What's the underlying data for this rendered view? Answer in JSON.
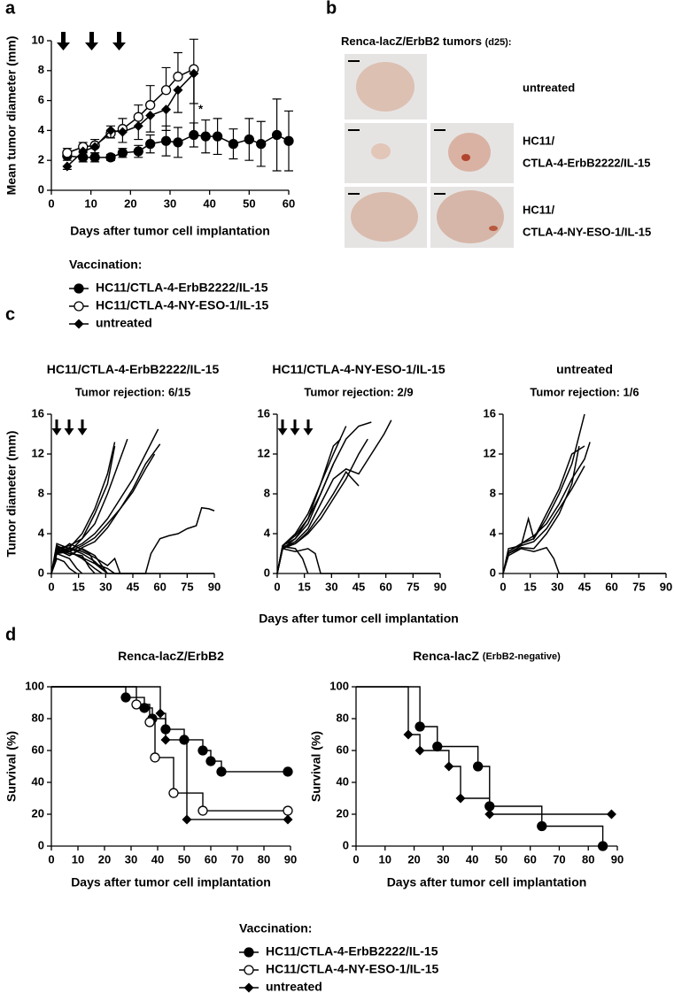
{
  "figure": {
    "panel_labels": [
      "a",
      "b",
      "c",
      "d"
    ],
    "panel_b": {
      "title": "Renca-lacZ/ErbB2 tumors",
      "title_note": "(d25):",
      "rows": [
        [
          "untreated"
        ],
        [
          "HC11/",
          "CTLA-4-ErbB2222/IL-15"
        ],
        [
          "HC11/",
          "CTLA-4-NY-ESO-1/IL-15"
        ]
      ]
    }
  },
  "chart_data": [
    {
      "type": "line",
      "x_label": "Days after tumor cell implantation",
      "y_label": "Mean tumor diameter  (mm)",
      "xlim": [
        0,
        60
      ],
      "xticks": [
        0,
        10,
        20,
        30,
        40,
        50,
        60
      ],
      "ylim": [
        0,
        10
      ],
      "yticks": [
        0,
        2,
        4,
        6,
        8,
        10
      ],
      "annotation": "*",
      "legend_title": "Vaccination:",
      "series": [
        {
          "name": "HC11/CTLA-4-ErbB2222/IL-15",
          "color": "#000000",
          "marker": "filled-circle",
          "error_direction": "both",
          "x": [
            4,
            8,
            11,
            15,
            18,
            22,
            25,
            29,
            32,
            36,
            39,
            42,
            46,
            50,
            53,
            57,
            60
          ],
          "values": [
            2.3,
            2.2,
            2.2,
            2.2,
            2.5,
            2.6,
            3.1,
            3.3,
            3.2,
            3.7,
            3.6,
            3.6,
            3.1,
            3.4,
            3.1,
            3.7,
            3.3
          ],
          "error": [
            0.3,
            0.3,
            0.3,
            0.2,
            0.3,
            0.4,
            0.6,
            1.0,
            1.0,
            0.8,
            1.1,
            1.2,
            1.0,
            1.4,
            1.5,
            2.4,
            2.0
          ]
        },
        {
          "name": "HC11/CTLA-4-NY-ESO-1/IL-15",
          "color": "#000000",
          "marker": "open-circle",
          "error_direction": "up",
          "x": [
            4,
            8,
            11,
            15,
            18,
            22,
            25,
            29,
            32,
            36
          ],
          "values": [
            2.5,
            2.9,
            3.0,
            3.8,
            4.1,
            4.9,
            5.7,
            6.7,
            7.6,
            8.1
          ],
          "error": [
            0.3,
            0.3,
            0.4,
            0.5,
            0.7,
            0.8,
            1.3,
            1.5,
            1.6,
            2.0
          ]
        },
        {
          "name": "untreated",
          "color": "#000000",
          "marker": "diamond",
          "error_direction": "down",
          "x": [
            4,
            8,
            11,
            15,
            18,
            22,
            25,
            29,
            32,
            36
          ],
          "values": [
            1.6,
            2.6,
            2.9,
            4.0,
            3.9,
            4.3,
            5.0,
            5.4,
            6.7,
            7.8
          ],
          "error": [
            0.2,
            0.3,
            0.4,
            0.5,
            0.7,
            0.9,
            1.1,
            1.4,
            1.5,
            2.0
          ]
        }
      ]
    },
    {
      "type": "line",
      "title": "HC11/CTLA-4-ErbB2222/IL-15",
      "subtitle": "Tumor rejection: 6/15",
      "y_label": "Tumor diameter  (mm)",
      "xlim": [
        0,
        90
      ],
      "xticks": [
        0,
        15,
        30,
        45,
        60,
        75,
        90
      ],
      "ylim": [
        0,
        16
      ],
      "yticks": [
        0,
        4,
        8,
        12,
        16
      ],
      "series": [
        {
          "color": "#000000",
          "x": [
            0,
            3,
            10,
            17,
            24,
            31,
            38,
            42
          ],
          "values": [
            0,
            2.5,
            2.8,
            3.5,
            5,
            8,
            11.5,
            13.5
          ]
        },
        {
          "color": "#000000",
          "x": [
            0,
            3,
            10,
            17,
            24,
            31,
            35
          ],
          "values": [
            0,
            2,
            2.6,
            4,
            6.5,
            10,
            13.2
          ]
        },
        {
          "color": "#000000",
          "x": [
            0,
            3,
            10,
            17,
            24,
            31,
            35
          ],
          "values": [
            0,
            2.7,
            2.2,
            3.5,
            6,
            9,
            12.8
          ]
        },
        {
          "color": "#000000",
          "x": [
            0,
            3,
            10,
            17,
            24,
            31,
            38,
            45,
            52,
            59
          ],
          "values": [
            0,
            2.2,
            2.4,
            3,
            4,
            5.5,
            7.5,
            9.5,
            12,
            14.5
          ]
        },
        {
          "color": "#000000",
          "x": [
            0,
            3,
            10,
            17,
            24,
            31,
            38,
            45,
            52,
            60
          ],
          "values": [
            0,
            2,
            2.2,
            2.8,
            3.6,
            5,
            6.5,
            8.5,
            11,
            13
          ]
        },
        {
          "color": "#000000",
          "x": [
            0,
            3,
            10,
            17,
            24,
            31,
            38,
            45,
            52,
            57
          ],
          "values": [
            0,
            2.5,
            1.8,
            2.6,
            3.2,
            4.6,
            6.5,
            8.2,
            10.5,
            12
          ]
        },
        {
          "color": "#000000",
          "x": [
            0,
            3,
            10,
            17,
            24,
            28
          ],
          "values": [
            0,
            2.8,
            2.2,
            1.5,
            0.5,
            0
          ]
        },
        {
          "color": "#000000",
          "x": [
            0,
            3,
            10,
            17,
            21,
            24
          ],
          "values": [
            0,
            2.5,
            2,
            1.8,
            0.6,
            0
          ]
        },
        {
          "color": "#000000",
          "x": [
            0,
            3,
            10,
            14,
            17
          ],
          "values": [
            0,
            2,
            1.5,
            0.5,
            0
          ]
        },
        {
          "color": "#000000",
          "x": [
            0,
            3,
            10,
            17,
            24,
            31
          ],
          "values": [
            0,
            3,
            2.5,
            2.0,
            1.2,
            0
          ]
        },
        {
          "color": "#000000",
          "x": [
            0,
            3,
            7,
            10,
            14
          ],
          "values": [
            0,
            1.5,
            1.2,
            0.5,
            0
          ]
        },
        {
          "color": "#000000",
          "x": [
            0,
            3,
            10,
            17,
            24,
            31,
            35,
            90
          ],
          "values": [
            0,
            2.5,
            2.2,
            1.6,
            1,
            0.5,
            0,
            0
          ]
        },
        {
          "color": "#000000",
          "x": [
            0,
            3,
            10,
            17,
            21,
            24,
            31,
            52,
            55,
            60,
            65,
            70,
            75,
            80,
            83,
            87,
            90
          ],
          "values": [
            0,
            2,
            3,
            2.4,
            2,
            1,
            0,
            0,
            2,
            3.5,
            3.8,
            4,
            4.5,
            4.8,
            6.6,
            6.5,
            6.3
          ]
        },
        {
          "color": "#000000",
          "x": [
            0,
            3,
            10,
            17,
            24,
            31,
            35,
            38,
            45
          ],
          "values": [
            0,
            2.2,
            2.6,
            2.2,
            1.6,
            0.8,
            1.5,
            0,
            0
          ]
        },
        {
          "color": "#000000",
          "x": [
            0,
            3,
            10,
            17,
            24,
            31
          ],
          "values": [
            0,
            2.4,
            1.8,
            2.5,
            1.8,
            0
          ]
        }
      ]
    },
    {
      "type": "line",
      "title": "HC11/CTLA-4-NY-ESO-1/IL-15",
      "subtitle": "Tumor rejection: 2/9",
      "x_label": "Days after tumor cell implantation",
      "xlim": [
        0,
        90
      ],
      "xticks": [
        0,
        15,
        30,
        45,
        60,
        75,
        90
      ],
      "ylim": [
        0,
        16
      ],
      "yticks": [
        0,
        4,
        8,
        12,
        16
      ],
      "series": [
        {
          "color": "#000000",
          "x": [
            0,
            3,
            10,
            17,
            24,
            31,
            38,
            45,
            52
          ],
          "values": [
            0,
            2.5,
            3.5,
            5,
            8,
            11,
            13.5,
            14.8,
            15.2
          ]
        },
        {
          "color": "#000000",
          "x": [
            0,
            3,
            10,
            17,
            24,
            31,
            35
          ],
          "values": [
            0,
            2.8,
            3.5,
            5.5,
            9,
            12.8,
            13.5
          ]
        },
        {
          "color": "#000000",
          "x": [
            0,
            3,
            10,
            17,
            24,
            31,
            38,
            45,
            52,
            59,
            63
          ],
          "values": [
            0,
            2.6,
            3.2,
            4.5,
            7,
            9.5,
            10.5,
            10,
            12,
            14,
            15.4
          ]
        },
        {
          "color": "#000000",
          "x": [
            0,
            3,
            10,
            17,
            24,
            31,
            38,
            45
          ],
          "values": [
            0,
            2.5,
            3,
            4.2,
            6,
            8,
            10.2,
            8.8
          ]
        },
        {
          "color": "#000000",
          "x": [
            0,
            3,
            10,
            17,
            24,
            31,
            38,
            45,
            50
          ],
          "values": [
            0,
            2.7,
            3,
            4,
            5.5,
            7.5,
            9.5,
            12,
            13.5
          ]
        },
        {
          "color": "#000000",
          "x": [
            0,
            3,
            10,
            17,
            24,
            31,
            38
          ],
          "values": [
            0,
            2.8,
            4,
            6,
            9,
            12,
            14.8
          ]
        },
        {
          "color": "#000000",
          "x": [
            0,
            3,
            10,
            17,
            24,
            31
          ],
          "values": [
            0,
            2.8,
            3.8,
            5.5,
            8,
            11
          ]
        },
        {
          "color": "#000000",
          "x": [
            0,
            3,
            10,
            17,
            21,
            24,
            90
          ],
          "values": [
            0,
            2.5,
            2.2,
            2.5,
            2,
            0,
            0
          ]
        },
        {
          "color": "#000000",
          "x": [
            0,
            3,
            10,
            14,
            17
          ],
          "values": [
            0,
            2.7,
            2.5,
            1.5,
            0
          ]
        }
      ]
    },
    {
      "type": "line",
      "title": "untreated",
      "subtitle": "Tumor rejection: 1/6",
      "xlim": [
        0,
        90
      ],
      "xticks": [
        0,
        15,
        30,
        45,
        60,
        75,
        90
      ],
      "ylim": [
        0,
        16
      ],
      "yticks": [
        0,
        4,
        8,
        12,
        16
      ],
      "series": [
        {
          "color": "#000000",
          "x": [
            0,
            3,
            10,
            17,
            24,
            31,
            38,
            45
          ],
          "values": [
            0,
            2.2,
            3,
            3.5,
            5.5,
            8,
            11,
            16
          ]
        },
        {
          "color": "#000000",
          "x": [
            0,
            3,
            10,
            14,
            17,
            24,
            31,
            38,
            45
          ],
          "values": [
            0,
            2,
            2.8,
            5.5,
            3.5,
            6,
            8.5,
            12,
            12.8
          ]
        },
        {
          "color": "#000000",
          "x": [
            0,
            3,
            10,
            17,
            24,
            31,
            38,
            45,
            48
          ],
          "values": [
            0,
            2.2,
            3,
            3.8,
            5,
            7,
            9.5,
            11.5,
            13.2
          ]
        },
        {
          "color": "#000000",
          "x": [
            0,
            3,
            10,
            17,
            24,
            31,
            38,
            45
          ],
          "values": [
            0,
            2.5,
            2.8,
            3.2,
            4.5,
            6.5,
            8.5,
            10.8
          ]
        },
        {
          "color": "#000000",
          "x": [
            0,
            3,
            10,
            17,
            24,
            31,
            38,
            42
          ],
          "values": [
            0,
            2,
            2.6,
            2.5,
            4,
            6,
            9,
            12.8
          ]
        },
        {
          "color": "#000000",
          "x": [
            0,
            3,
            10,
            17,
            24,
            28,
            31,
            90
          ],
          "values": [
            0,
            1.8,
            2.5,
            2.2,
            2.6,
            1.5,
            0,
            0
          ]
        }
      ]
    },
    {
      "type": "step",
      "title": "Renca-lacZ/ErbB2",
      "x_label": "Days after tumor cell implantation",
      "y_label": "Survival  (%)",
      "xlim": [
        0,
        90
      ],
      "xticks": [
        0,
        10,
        20,
        30,
        40,
        50,
        60,
        70,
        80,
        90
      ],
      "ylim": [
        0,
        100
      ],
      "yticks": [
        0,
        20,
        40,
        60,
        80,
        100
      ],
      "legend_title": "Vaccination:",
      "series": [
        {
          "name": "HC11/CTLA-4-ErbB2222/IL-15",
          "color": "#000000",
          "marker": "filled-circle",
          "x": [
            0,
            28,
            35,
            38,
            43,
            50,
            57,
            60,
            64,
            89
          ],
          "values": [
            100,
            93.3,
            86.7,
            80,
            73.3,
            66.7,
            60,
            53.3,
            46.7,
            46.7
          ]
        },
        {
          "name": "HC11/CTLA-4-NY-ESO-1/IL-15",
          "color": "#000000",
          "marker": "open-circle",
          "x": [
            0,
            32,
            37,
            39,
            46,
            57,
            89
          ],
          "values": [
            100,
            88.9,
            77.8,
            55.6,
            33.3,
            22.2,
            22.2
          ]
        },
        {
          "name": "untreated",
          "color": "#000000",
          "marker": "diamond",
          "x": [
            0,
            41,
            43,
            51,
            89
          ],
          "values": [
            100,
            83.3,
            66.7,
            16.7,
            16.7
          ]
        }
      ]
    },
    {
      "type": "step",
      "title": "Renca-lacZ",
      "title_note": "(ErbB2-negative)",
      "x_label": "Days after tumor cell implantation",
      "y_label": "Survival  (%)",
      "xlim": [
        0,
        90
      ],
      "xticks": [
        0,
        10,
        20,
        30,
        40,
        50,
        60,
        70,
        80,
        90
      ],
      "ylim": [
        0,
        100
      ],
      "yticks": [
        0,
        20,
        40,
        60,
        80,
        100
      ],
      "series": [
        {
          "name": "HC11/CTLA-4-ErbB2222/IL-15",
          "color": "#000000",
          "marker": "filled-circle",
          "x": [
            0,
            22,
            28,
            42,
            46,
            64,
            85
          ],
          "values": [
            100,
            75,
            62.5,
            50,
            25,
            12.5,
            0
          ]
        },
        {
          "name": "untreated",
          "color": "#000000",
          "marker": "diamond",
          "x": [
            0,
            18,
            22,
            32,
            36,
            46,
            88
          ],
          "values": [
            100,
            70,
            60,
            50,
            30,
            20,
            20
          ]
        }
      ]
    }
  ]
}
